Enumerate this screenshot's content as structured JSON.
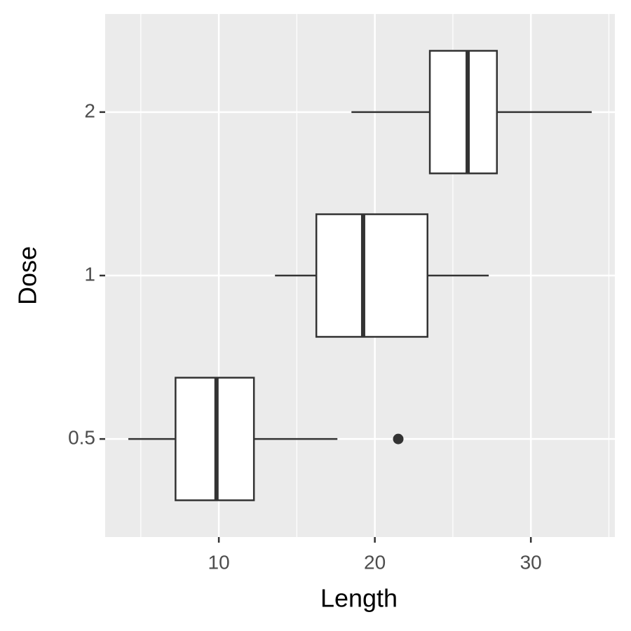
{
  "chart_data": {
    "type": "boxplot",
    "orientation": "horizontal",
    "x_label": "Length",
    "y_label": "Dose",
    "categories": [
      "0.5",
      "1",
      "2"
    ],
    "series": [
      {
        "name": "Length",
        "min": [
          4.2,
          13.6,
          18.5
        ],
        "q1": [
          7.225,
          16.25,
          23.525
        ],
        "median": [
          9.85,
          19.25,
          25.95
        ],
        "q3": [
          12.25,
          23.375,
          27.825
        ],
        "max": [
          17.6,
          27.3,
          33.9
        ],
        "outliers": [
          [
            21.5
          ],
          [],
          []
        ]
      }
    ],
    "box_fill": "#ffffff",
    "line_color": "#333333",
    "panel_color": "#ebebeb",
    "xlim": [
      2.715,
      35.385
    ],
    "xticks": [
      10,
      20,
      30
    ],
    "xminor": [
      5,
      15,
      25,
      35
    ],
    "grid": true
  }
}
